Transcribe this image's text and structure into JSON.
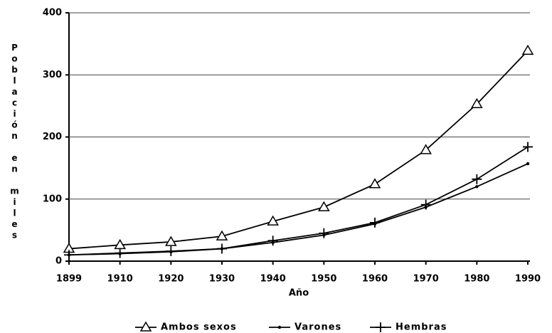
{
  "chart_data": {
    "type": "line",
    "xlabel": "Año",
    "ylabel": "Población en miles",
    "categories": [
      "1899",
      "1910",
      "1920",
      "1930",
      "1940",
      "1950",
      "1960",
      "1970",
      "1980",
      "1990"
    ],
    "series": [
      {
        "name": "Ambos sexos",
        "color": "#000000",
        "marker": "triangle",
        "values": [
          20,
          26,
          31,
          40,
          64,
          87,
          124,
          179,
          253,
          339
        ]
      },
      {
        "name": "Varones",
        "color": "#000000",
        "marker": "dot",
        "values": [
          10,
          12,
          15,
          20,
          30,
          42,
          60,
          87,
          120,
          157
        ]
      },
      {
        "name": "Hembras",
        "color": "#000000",
        "marker": "plus",
        "values": [
          10,
          13,
          16,
          20,
          33,
          45,
          62,
          91,
          132,
          184
        ]
      }
    ],
    "ylim": [
      0,
      400
    ],
    "yticks": [
      0,
      100,
      200,
      300,
      400
    ],
    "grid": true,
    "legend": "bottom"
  }
}
